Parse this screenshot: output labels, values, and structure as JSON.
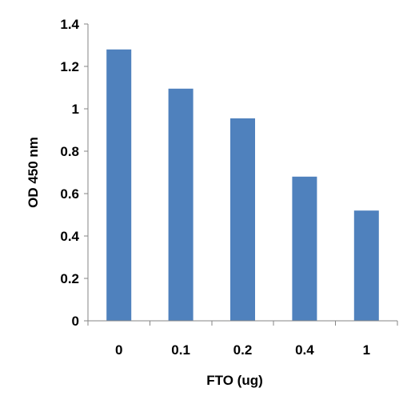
{
  "chart_data": {
    "type": "bar",
    "title": "",
    "xlabel": "FTO (ug)",
    "ylabel": "OD 450 nm",
    "categories": [
      "0",
      "0.1",
      "0.2",
      "0.4",
      "1"
    ],
    "values": [
      1.28,
      1.095,
      0.955,
      0.68,
      0.52
    ],
    "ylim": [
      0,
      1.4
    ],
    "yticks": [
      "0",
      "0.2",
      "0.4",
      "0.6",
      "0.8",
      "1",
      "1.2",
      "1.4"
    ],
    "grid": false,
    "legend": "none",
    "bar_color": "#4F81BD"
  }
}
